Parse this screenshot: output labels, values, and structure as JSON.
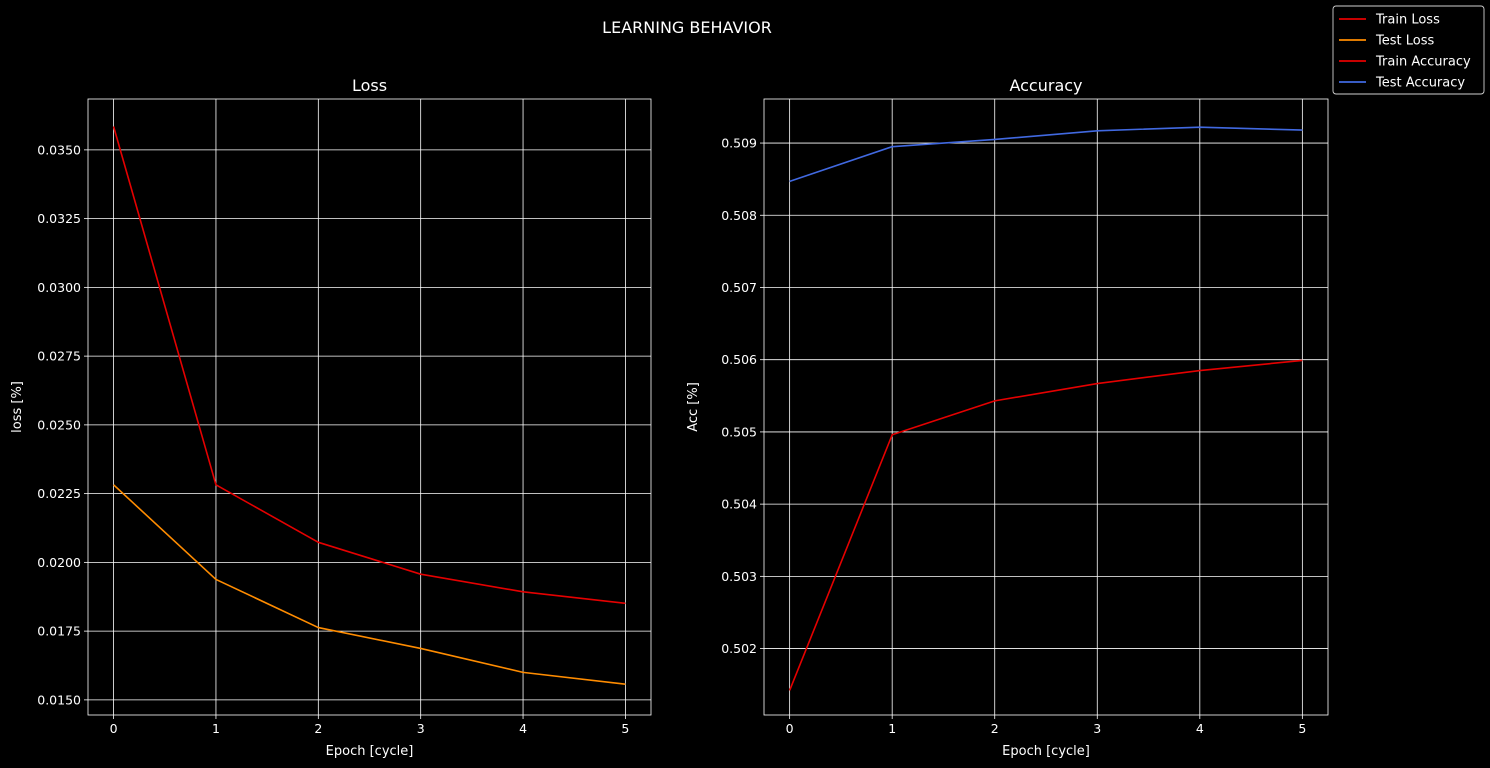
{
  "figure": {
    "suptitle": "LEARNING BEHAVIOR"
  },
  "legend": {
    "placement": "top-right",
    "entries": [
      {
        "label": "Train Loss",
        "color": "#e50000"
      },
      {
        "label": "Test Loss",
        "color": "#ff8c00"
      },
      {
        "label": "Train Accuracy",
        "color": "#e50000"
      },
      {
        "label": "Test Accuracy",
        "color": "#4169e1"
      }
    ]
  },
  "chart_data": [
    {
      "type": "line",
      "title": "Loss",
      "xlabel": "Epoch [cycle]",
      "ylabel": "loss [%]",
      "grid": true,
      "x": [
        0,
        1,
        2,
        3,
        4,
        5
      ],
      "xlim": [
        -0.25,
        5.25
      ],
      "ylim": [
        0.01445,
        0.03685
      ],
      "xticks": [
        0,
        1,
        2,
        3,
        4,
        5
      ],
      "yticks": [
        0.015,
        0.0175,
        0.02,
        0.0225,
        0.025,
        0.0275,
        0.03,
        0.0325,
        0.035
      ],
      "ytick_labels": [
        "0.0150",
        "0.0175",
        "0.0200",
        "0.0225",
        "0.0250",
        "0.0275",
        "0.0300",
        "0.0325",
        "0.0350"
      ],
      "series": [
        {
          "name": "Train Loss",
          "color": "#e50000",
          "values": [
            0.03585,
            0.02282,
            0.02073,
            0.01957,
            0.01893,
            0.01851
          ]
        },
        {
          "name": "Test Loss",
          "color": "#ff8c00",
          "values": [
            0.02282,
            0.01938,
            0.01763,
            0.01687,
            0.016,
            0.01557
          ]
        }
      ]
    },
    {
      "type": "line",
      "title": "Accuracy",
      "xlabel": "Epoch [cycle]",
      "ylabel": "Acc [%]",
      "grid": true,
      "x": [
        0,
        1,
        2,
        3,
        4,
        5
      ],
      "xlim": [
        -0.25,
        5.25
      ],
      "ylim": [
        0.50108,
        0.50961
      ],
      "xticks": [
        0,
        1,
        2,
        3,
        4,
        5
      ],
      "yticks": [
        0.502,
        0.503,
        0.504,
        0.505,
        0.506,
        0.507,
        0.508,
        0.509
      ],
      "ytick_labels": [
        "0.502",
        "0.503",
        "0.504",
        "0.505",
        "0.506",
        "0.507",
        "0.508",
        "0.509"
      ],
      "series": [
        {
          "name": "Train Accuracy",
          "color": "#e50000",
          "values": [
            0.50142,
            0.50496,
            0.50543,
            0.50567,
            0.50585,
            0.50599
          ]
        },
        {
          "name": "Test Accuracy",
          "color": "#4169e1",
          "values": [
            0.50847,
            0.50895,
            0.50905,
            0.50917,
            0.50922,
            0.50918
          ]
        }
      ]
    }
  ]
}
